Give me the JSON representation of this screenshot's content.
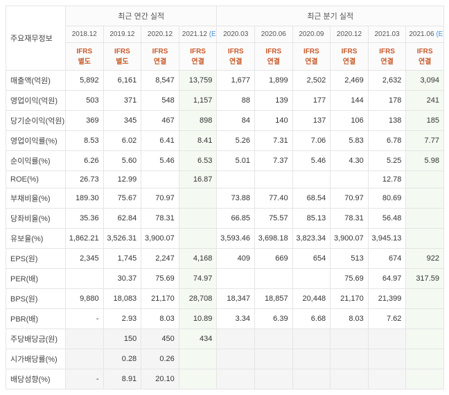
{
  "header": {
    "row_label": "주요재무정보",
    "group_annual": "최근 연간 실적",
    "group_quarter": "최근 분기 실적",
    "periods": [
      {
        "label": "2018.12",
        "est": false
      },
      {
        "label": "2019.12",
        "est": false
      },
      {
        "label": "2020.12",
        "est": false
      },
      {
        "label": "2021.12",
        "est": true,
        "suffix": "(E)"
      },
      {
        "label": "2020.03",
        "est": false
      },
      {
        "label": "2020.06",
        "est": false
      },
      {
        "label": "2020.09",
        "est": false
      },
      {
        "label": "2020.12",
        "est": false
      },
      {
        "label": "2021.03",
        "est": false
      },
      {
        "label": "2021.06",
        "est": true,
        "suffix": "(E)"
      }
    ],
    "standards": [
      {
        "top": "IFRS",
        "bottom": "별도"
      },
      {
        "top": "IFRS",
        "bottom": "별도"
      },
      {
        "top": "IFRS",
        "bottom": "연결"
      },
      {
        "top": "IFRS",
        "bottom": "연결"
      },
      {
        "top": "IFRS",
        "bottom": "연결"
      },
      {
        "top": "IFRS",
        "bottom": "연결"
      },
      {
        "top": "IFRS",
        "bottom": "연결"
      },
      {
        "top": "IFRS",
        "bottom": "연결"
      },
      {
        "top": "IFRS",
        "bottom": "연결"
      },
      {
        "top": "IFRS",
        "bottom": "연결"
      }
    ]
  },
  "col_flags": [
    "",
    "",
    "",
    "est",
    "",
    "",
    "",
    "",
    "",
    "est"
  ],
  "rows": [
    {
      "label": "매출액(억원)",
      "v": [
        "5,892",
        "6,161",
        "8,547",
        "13,759",
        "1,677",
        "1,899",
        "2,502",
        "2,469",
        "2,632",
        "3,094"
      ]
    },
    {
      "label": "영업이익(억원)",
      "v": [
        "503",
        "371",
        "548",
        "1,157",
        "88",
        "139",
        "177",
        "144",
        "178",
        "241"
      ]
    },
    {
      "label": "당기순이익(억원)",
      "v": [
        "369",
        "345",
        "467",
        "898",
        "84",
        "140",
        "137",
        "106",
        "138",
        "185"
      ]
    },
    {
      "label": "영업이익률(%)",
      "v": [
        "8.53",
        "6.02",
        "6.41",
        "8.41",
        "5.26",
        "7.31",
        "7.06",
        "5.83",
        "6.78",
        "7.77"
      ]
    },
    {
      "label": "순이익률(%)",
      "v": [
        "6.26",
        "5.60",
        "5.46",
        "6.53",
        "5.01",
        "7.37",
        "5.46",
        "4.30",
        "5.25",
        "5.98"
      ]
    },
    {
      "label": "ROE(%)",
      "v": [
        "26.73",
        "12.99",
        "",
        "16.87",
        "",
        "",
        "",
        "",
        "12.78",
        ""
      ]
    },
    {
      "label": "부채비율(%)",
      "v": [
        "189.30",
        "75.67",
        "70.97",
        "",
        "73.88",
        "77.40",
        "68.54",
        "70.97",
        "80.69",
        ""
      ]
    },
    {
      "label": "당좌비율(%)",
      "v": [
        "35.36",
        "62.84",
        "78.31",
        "",
        "66.85",
        "75.57",
        "85.13",
        "78.31",
        "56.48",
        ""
      ]
    },
    {
      "label": "유보율(%)",
      "v": [
        "1,862.21",
        "3,526.31",
        "3,900.07",
        "",
        "3,593.46",
        "3,698.18",
        "3,823.34",
        "3,900.07",
        "3,945.13",
        ""
      ]
    },
    {
      "label": "EPS(원)",
      "v": [
        "2,345",
        "1,745",
        "2,247",
        "4,168",
        "409",
        "669",
        "654",
        "513",
        "674",
        "922"
      ]
    },
    {
      "label": "PER(배)",
      "v": [
        "",
        "30.37",
        "75.69",
        "74.97",
        "",
        "",
        "",
        "75.69",
        "64.97",
        "317.59"
      ]
    },
    {
      "label": "BPS(원)",
      "v": [
        "9,880",
        "18,083",
        "21,170",
        "28,708",
        "18,347",
        "18,857",
        "20,448",
        "21,170",
        "21,399",
        ""
      ]
    },
    {
      "label": "PBR(배)",
      "v": [
        "-",
        "2.93",
        "8.03",
        "10.89",
        "3.34",
        "6.39",
        "6.68",
        "8.03",
        "7.62",
        ""
      ]
    },
    {
      "label": "주당배당금(원)",
      "grey": true,
      "v": [
        "",
        "150",
        "450",
        "434",
        "",
        "",
        "",
        "",
        "",
        ""
      ]
    },
    {
      "label": "시가배당률(%)",
      "grey": true,
      "v": [
        "",
        "0.28",
        "0.26",
        "",
        "",
        "",
        "",
        "",
        "",
        ""
      ]
    },
    {
      "label": "배당성향(%)",
      "grey": true,
      "v": [
        "-",
        "8.91",
        "20.10",
        "",
        "",
        "",
        "",
        "",
        "",
        ""
      ]
    }
  ]
}
